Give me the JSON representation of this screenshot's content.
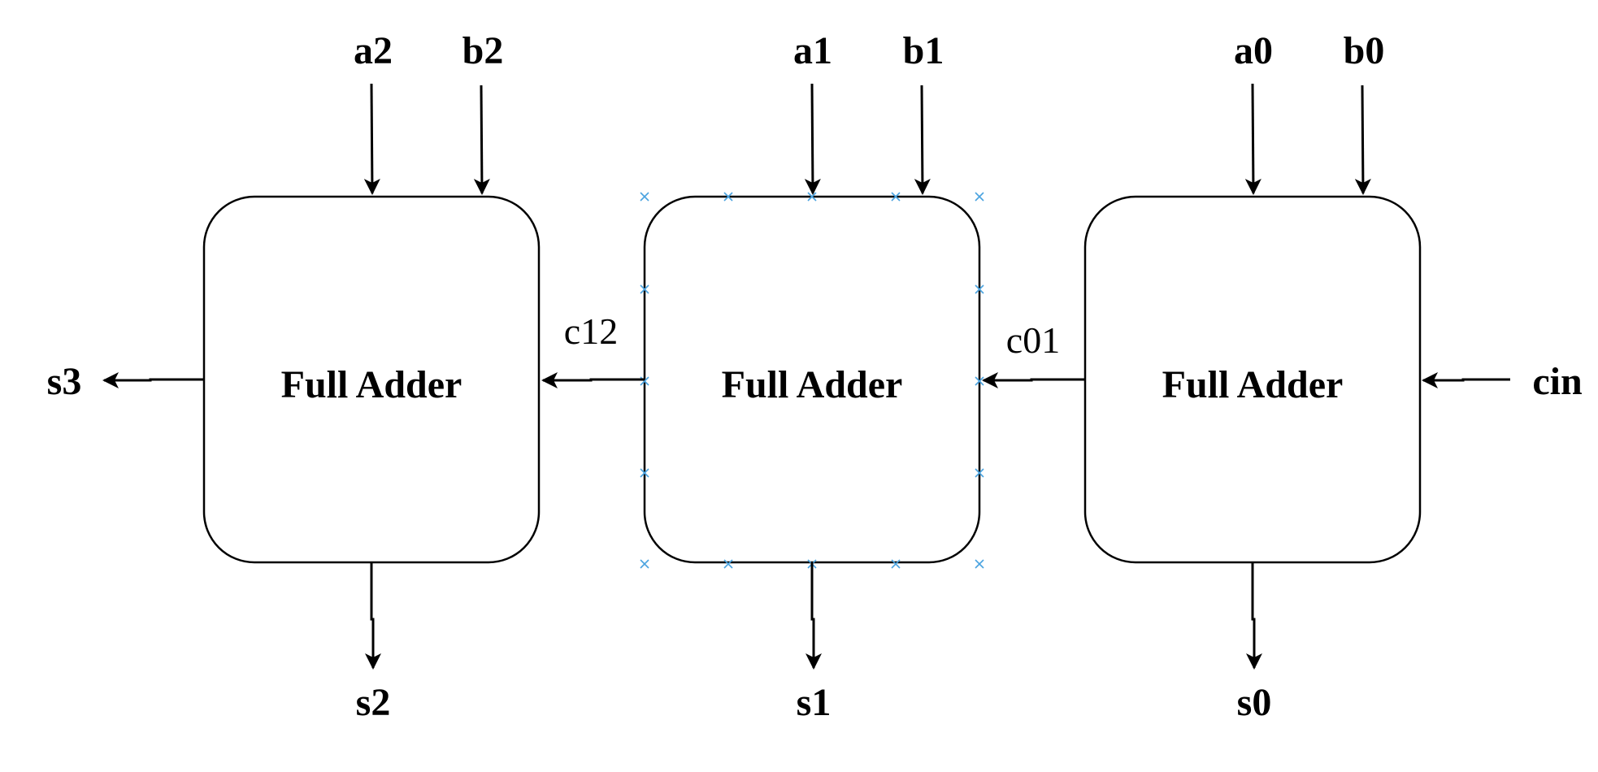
{
  "blocks": [
    {
      "label": "Full Adder"
    },
    {
      "label": "Full Adder"
    },
    {
      "label": "Full Adder"
    }
  ],
  "inputs": {
    "a2": "a2",
    "b2": "b2",
    "a1": "a1",
    "b1": "b1",
    "a0": "a0",
    "b0": "b0",
    "cin": "cin"
  },
  "outputs": {
    "s3": "s3",
    "s2": "s2",
    "s1": "s1",
    "s0": "s0"
  },
  "carries": {
    "c12": "c12",
    "c01": "c01"
  },
  "colors": {
    "stroke": "#000000",
    "selection_handle": "#4aa3e0"
  }
}
